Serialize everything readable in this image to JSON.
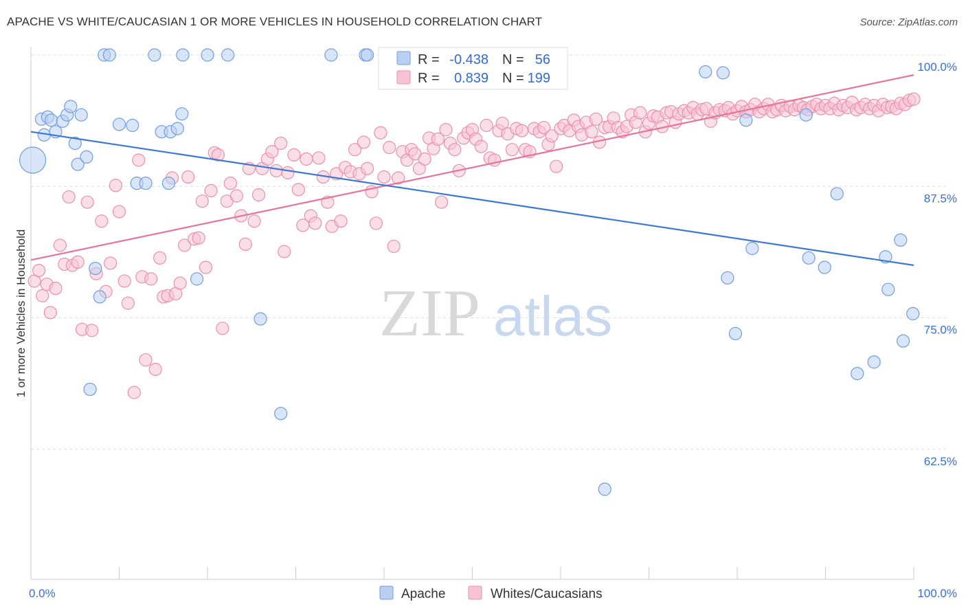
{
  "title": "APACHE VS WHITE/CAUCASIAN 1 OR MORE VEHICLES IN HOUSEHOLD CORRELATION CHART",
  "source": "Source: ZipAtlas.com",
  "watermark": {
    "zip": "ZIP",
    "atlas": "atlas"
  },
  "colors": {
    "apache_fill": "#b9d0f3",
    "apache_stroke": "#6f9ee0",
    "apache_line": "#3b78d4",
    "white_fill": "#f8c4d4",
    "white_stroke": "#ea8fad",
    "white_line": "#e8739a",
    "grid": "#dddddd",
    "tick_text": "#3a6fd1"
  },
  "legend": {
    "rows": [
      {
        "r_label": "R =",
        "r_value": "-0.438",
        "n_label": "N =",
        "n_value": "56"
      },
      {
        "r_label": "R =",
        "r_value": "0.839",
        "n_label": "N =",
        "n_value": "199"
      }
    ]
  },
  "bottom_legend": [
    "Apache",
    "Whites/Caucasians"
  ],
  "chart_data": {
    "type": "scatter",
    "xlabel": "",
    "ylabel": "1 or more Vehicles in Household",
    "xlim": [
      0,
      100
    ],
    "ylim": [
      50,
      102
    ],
    "x_tick_labels": [
      "0.0%",
      "100.0%"
    ],
    "y_ticks": [
      62.5,
      75.0,
      87.5,
      100.0
    ],
    "y_tick_labels": [
      "62.5%",
      "75.0%",
      "87.5%",
      "100.0%"
    ],
    "grid": true,
    "legend_position": "top-center",
    "series": [
      {
        "name": "Apache",
        "r": -0.438,
        "n": 56,
        "trend": {
          "x": [
            0,
            100
          ],
          "y": [
            92.7,
            80.0
          ]
        },
        "points": [
          [
            0.2,
            90.0,
            "large"
          ],
          [
            1.2,
            93.9
          ],
          [
            1.5,
            92.4
          ],
          [
            1.9,
            94.1
          ],
          [
            2.3,
            93.8
          ],
          [
            2.8,
            92.7
          ],
          [
            3.6,
            93.7
          ],
          [
            4.1,
            94.3
          ],
          [
            4.5,
            95.1
          ],
          [
            5.0,
            91.6
          ],
          [
            5.3,
            89.6
          ],
          [
            5.7,
            94.3
          ],
          [
            6.3,
            90.3
          ],
          [
            6.7,
            68.2
          ],
          [
            7.3,
            79.7
          ],
          [
            7.8,
            77.0
          ],
          [
            8.3,
            100.0
          ],
          [
            8.9,
            100.0
          ],
          [
            10.0,
            93.4
          ],
          [
            11.5,
            93.3
          ],
          [
            12.0,
            87.8
          ],
          [
            13.0,
            87.8
          ],
          [
            14.0,
            100.0
          ],
          [
            14.8,
            92.7
          ],
          [
            15.6,
            87.8
          ],
          [
            15.8,
            92.7
          ],
          [
            16.6,
            93.0
          ],
          [
            17.1,
            94.4
          ],
          [
            17.2,
            100.0
          ],
          [
            18.8,
            78.7
          ],
          [
            20.0,
            100.0
          ],
          [
            22.3,
            100.0
          ],
          [
            26.0,
            74.9
          ],
          [
            28.3,
            65.9
          ],
          [
            34.0,
            100.0
          ],
          [
            37.9,
            100.0
          ],
          [
            38.1,
            100.0
          ],
          [
            42.3,
            100.0
          ],
          [
            65.0,
            58.7
          ],
          [
            76.4,
            98.4
          ],
          [
            78.4,
            98.3
          ],
          [
            78.9,
            78.8
          ],
          [
            79.8,
            73.5
          ],
          [
            81.0,
            93.8
          ],
          [
            81.7,
            81.6
          ],
          [
            87.8,
            94.3
          ],
          [
            88.1,
            80.7
          ],
          [
            89.9,
            79.8
          ],
          [
            91.3,
            86.8
          ],
          [
            93.6,
            69.7
          ],
          [
            95.5,
            70.8
          ],
          [
            96.8,
            80.8
          ],
          [
            97.1,
            77.7
          ],
          [
            98.5,
            82.4
          ],
          [
            98.8,
            72.8
          ],
          [
            99.9,
            75.4
          ]
        ]
      },
      {
        "name": "Whites/Caucasians",
        "r": 0.839,
        "n": 199,
        "trend": {
          "x": [
            0,
            100
          ],
          "y": [
            80.5,
            98.1
          ]
        },
        "points": [
          [
            0.4,
            78.5
          ],
          [
            0.9,
            79.5
          ],
          [
            1.3,
            77.1
          ],
          [
            1.8,
            78.2
          ],
          [
            2.2,
            75.5
          ],
          [
            2.8,
            77.8
          ],
          [
            3.3,
            81.9
          ],
          [
            3.8,
            80.1
          ],
          [
            4.3,
            86.5
          ],
          [
            4.7,
            80.0
          ],
          [
            5.3,
            80.3
          ],
          [
            5.8,
            73.9
          ],
          [
            6.4,
            86.0
          ],
          [
            6.9,
            73.8
          ],
          [
            7.4,
            79.2
          ],
          [
            8.0,
            84.2
          ],
          [
            8.5,
            77.5
          ],
          [
            9.0,
            80.2
          ],
          [
            9.6,
            87.6
          ],
          [
            10.0,
            85.1
          ],
          [
            10.6,
            78.5
          ],
          [
            11.0,
            76.4
          ],
          [
            11.7,
            67.9
          ],
          [
            12.2,
            90.0
          ],
          [
            12.6,
            78.9
          ],
          [
            13.0,
            71.0
          ],
          [
            13.6,
            78.7
          ],
          [
            14.1,
            70.1
          ],
          [
            14.6,
            80.7
          ],
          [
            15.0,
            77.0
          ],
          [
            15.5,
            77.1
          ],
          [
            16.0,
            88.3
          ],
          [
            16.4,
            77.3
          ],
          [
            16.9,
            78.3
          ],
          [
            17.4,
            81.9
          ],
          [
            17.8,
            88.4
          ],
          [
            18.5,
            82.5
          ],
          [
            19.0,
            82.6
          ],
          [
            19.4,
            86.1
          ],
          [
            19.8,
            79.8
          ],
          [
            20.4,
            87.1
          ],
          [
            20.8,
            90.7
          ],
          [
            21.2,
            90.5
          ],
          [
            21.7,
            74.0
          ],
          [
            22.2,
            86.1
          ],
          [
            22.6,
            87.8
          ],
          [
            23.3,
            86.6
          ],
          [
            23.8,
            84.7
          ],
          [
            24.3,
            82.0
          ],
          [
            24.7,
            89.2
          ],
          [
            25.3,
            84.2
          ],
          [
            25.8,
            86.7
          ],
          [
            26.2,
            89.2
          ],
          [
            26.8,
            90.1
          ],
          [
            27.3,
            90.8
          ],
          [
            27.8,
            89.0
          ],
          [
            28.3,
            91.6
          ],
          [
            28.7,
            81.3
          ],
          [
            29.1,
            88.8
          ],
          [
            29.8,
            90.5
          ],
          [
            30.3,
            87.2
          ],
          [
            30.8,
            83.8
          ],
          [
            31.2,
            90.1
          ],
          [
            31.7,
            84.7
          ],
          [
            32.2,
            84.0
          ],
          [
            32.6,
            90.2
          ],
          [
            33.1,
            88.4
          ],
          [
            33.6,
            86.0
          ],
          [
            34.1,
            83.7
          ],
          [
            34.6,
            88.7
          ],
          [
            35.1,
            84.2
          ],
          [
            35.6,
            89.3
          ],
          [
            36.2,
            88.9
          ],
          [
            36.7,
            91.0
          ],
          [
            37.2,
            88.7
          ],
          [
            37.7,
            91.7
          ],
          [
            38.1,
            89.2
          ],
          [
            38.6,
            87.0
          ],
          [
            39.1,
            84.0
          ],
          [
            39.6,
            92.6
          ],
          [
            40.0,
            88.4
          ],
          [
            40.6,
            91.2
          ],
          [
            41.1,
            81.8
          ],
          [
            41.6,
            88.3
          ],
          [
            42.1,
            90.8
          ],
          [
            42.6,
            90.0
          ],
          [
            43.1,
            91.0
          ],
          [
            43.5,
            90.6
          ],
          [
            44.0,
            89.2
          ],
          [
            44.6,
            90.1
          ],
          [
            45.1,
            92.1
          ],
          [
            45.6,
            91.1
          ],
          [
            46.1,
            92.0
          ],
          [
            46.5,
            86.0
          ],
          [
            47.0,
            92.9
          ],
          [
            47.5,
            91.6
          ],
          [
            48.0,
            91.0
          ],
          [
            48.5,
            89.0
          ],
          [
            49.0,
            92.1
          ],
          [
            49.5,
            92.6
          ],
          [
            50.0,
            92.9
          ],
          [
            50.4,
            92.0
          ],
          [
            51.0,
            91.3
          ],
          [
            51.6,
            93.3
          ],
          [
            52.0,
            90.2
          ],
          [
            52.5,
            90.0
          ],
          [
            53.0,
            92.8
          ],
          [
            53.4,
            93.5
          ],
          [
            54.0,
            92.5
          ],
          [
            54.5,
            91.0
          ],
          [
            55.0,
            93.0
          ],
          [
            55.6,
            92.8
          ],
          [
            56.0,
            91.0
          ],
          [
            56.5,
            90.8
          ],
          [
            57.0,
            93.0
          ],
          [
            57.6,
            92.7
          ],
          [
            58.1,
            93.1
          ],
          [
            58.6,
            91.5
          ],
          [
            59.0,
            92.3
          ],
          [
            59.5,
            89.4
          ],
          [
            60.0,
            93.0
          ],
          [
            60.4,
            93.3
          ],
          [
            61.0,
            92.8
          ],
          [
            61.5,
            93.8
          ],
          [
            62.0,
            93.2
          ],
          [
            62.4,
            92.4
          ],
          [
            62.9,
            93.6
          ],
          [
            63.5,
            92.7
          ],
          [
            64.0,
            93.9
          ],
          [
            64.4,
            91.7
          ],
          [
            65.0,
            93.1
          ],
          [
            65.5,
            93.2
          ],
          [
            66.0,
            94.0
          ],
          [
            66.5,
            93.1
          ],
          [
            67.0,
            92.7
          ],
          [
            67.5,
            93.2
          ],
          [
            68.0,
            94.3
          ],
          [
            68.5,
            93.6
          ],
          [
            69.0,
            94.5
          ],
          [
            69.6,
            92.7
          ],
          [
            70.0,
            93.5
          ],
          [
            70.5,
            94.2
          ],
          [
            71.0,
            94.1
          ],
          [
            71.5,
            93.2
          ],
          [
            72.0,
            94.5
          ],
          [
            72.5,
            94.6
          ],
          [
            73.0,
            93.6
          ],
          [
            73.4,
            94.4
          ],
          [
            74.0,
            94.7
          ],
          [
            74.5,
            94.5
          ],
          [
            75.0,
            95.0
          ],
          [
            75.5,
            94.4
          ],
          [
            76.0,
            94.8
          ],
          [
            76.5,
            94.9
          ],
          [
            77.0,
            93.7
          ],
          [
            77.5,
            94.5
          ],
          [
            78.0,
            94.8
          ],
          [
            78.6,
            94.7
          ],
          [
            79.0,
            95.0
          ],
          [
            79.5,
            94.4
          ],
          [
            80.0,
            94.7
          ],
          [
            80.5,
            95.1
          ],
          [
            81.0,
            94.6
          ],
          [
            81.5,
            94.8
          ],
          [
            82.0,
            95.3
          ],
          [
            82.5,
            94.6
          ],
          [
            83.0,
            94.9
          ],
          [
            83.5,
            95.3
          ],
          [
            84.0,
            94.6
          ],
          [
            84.5,
            94.8
          ],
          [
            85.0,
            95.2
          ],
          [
            85.5,
            94.7
          ],
          [
            86.0,
            95.1
          ],
          [
            86.5,
            94.8
          ],
          [
            87.0,
            95.2
          ],
          [
            87.5,
            95.0
          ],
          [
            88.0,
            94.8
          ],
          [
            88.5,
            95.1
          ],
          [
            89.0,
            95.3
          ],
          [
            89.5,
            94.9
          ],
          [
            90.0,
            95.2
          ],
          [
            90.5,
            94.9
          ],
          [
            91.0,
            95.4
          ],
          [
            91.5,
            94.8
          ],
          [
            92.0,
            95.2
          ],
          [
            92.5,
            95.0
          ],
          [
            93.0,
            95.5
          ],
          [
            93.5,
            94.8
          ],
          [
            94.0,
            95.0
          ],
          [
            94.5,
            95.3
          ],
          [
            95.0,
            94.9
          ],
          [
            95.5,
            95.2
          ],
          [
            96.0,
            94.7
          ],
          [
            96.5,
            95.3
          ],
          [
            97.0,
            95.0
          ],
          [
            97.5,
            95.1
          ],
          [
            98.0,
            94.9
          ],
          [
            98.5,
            95.4
          ],
          [
            99.0,
            95.3
          ],
          [
            99.5,
            95.7
          ],
          [
            100.0,
            95.8
          ]
        ]
      }
    ]
  }
}
